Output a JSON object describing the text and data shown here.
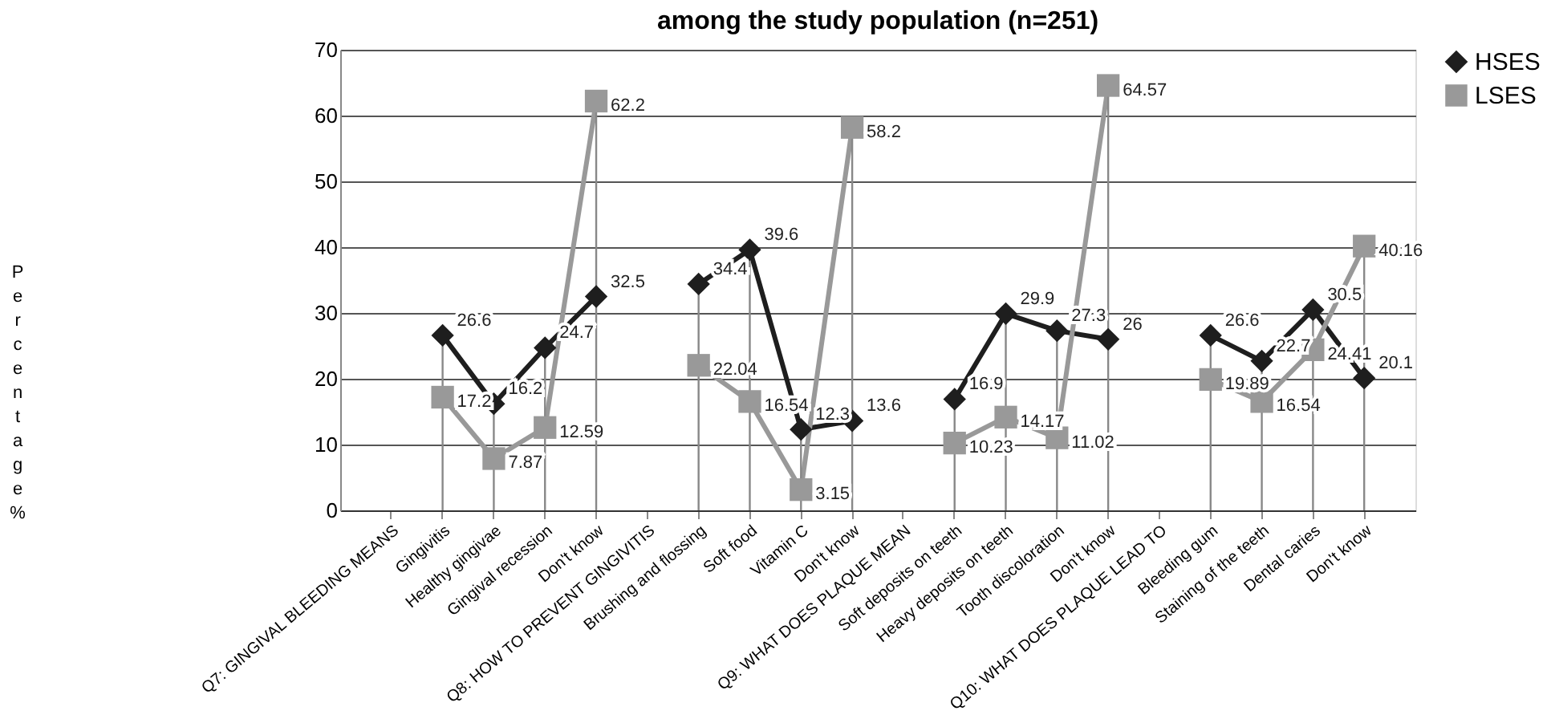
{
  "chart_data": {
    "type": "line",
    "title": "among the study population (n=251)",
    "ylabel": "Percentage %",
    "categories": [
      "Q7: GINGIVAL BLEEDING MEANS",
      "Gingivitis",
      "Healthy gingivae",
      "Gingival recession",
      "Don't know",
      "Q8: HOW TO PREVENT GINGIVITIS",
      "Brushing and flossing",
      "Soft food",
      "Vitamin C",
      "Don't know",
      "Q9: WHAT DOES PLAQUE MEAN",
      "Soft deposits on teeth",
      "Heavy deposits on teeth",
      "Tooth discoloration",
      "Don't know",
      "Q10: WHAT DOES PLAQUE LEAD TO",
      "Bleeding gum",
      "Staining of the teeth",
      "Dental caries",
      "Don't know"
    ],
    "series": [
      {
        "name": "HSES",
        "color": "#1e1e1e",
        "marker": "diamond",
        "values": [
          null,
          26.6,
          16.2,
          24.7,
          32.5,
          null,
          34.4,
          39.6,
          12.3,
          13.6,
          null,
          16.9,
          29.9,
          27.3,
          26,
          null,
          26.6,
          22.7,
          30.5,
          20.1
        ]
      },
      {
        "name": "LSES",
        "color": "#999999",
        "marker": "square",
        "values": [
          null,
          17.2,
          7.87,
          12.59,
          62.2,
          null,
          22.04,
          16.54,
          3.15,
          58.2,
          null,
          10.23,
          14.17,
          11.02,
          64.57,
          null,
          19.89,
          16.54,
          24.41,
          40.16
        ]
      }
    ],
    "ylim": [
      0,
      70
    ],
    "yticks": [
      0,
      10,
      20,
      30,
      40,
      50,
      60,
      70
    ],
    "grid": true,
    "legend": "right",
    "data_labels": true
  }
}
